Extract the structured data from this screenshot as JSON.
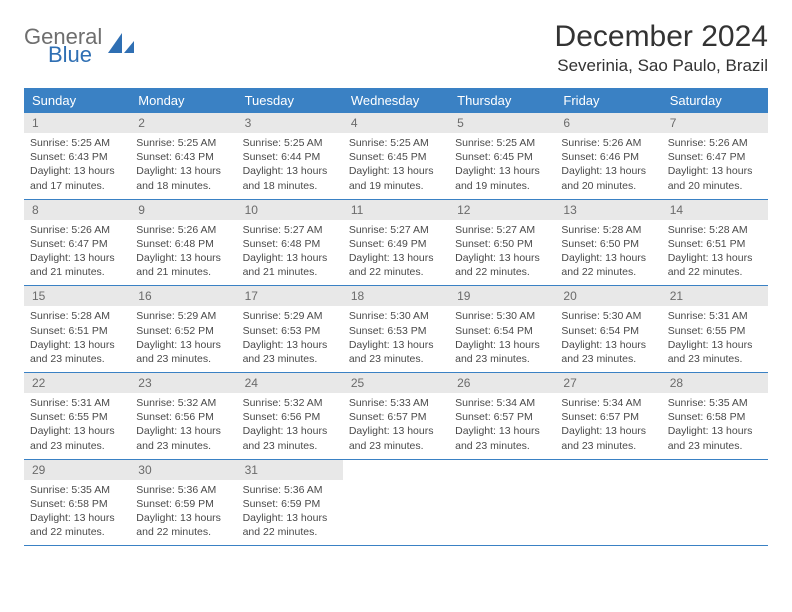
{
  "logo": {
    "top": "General",
    "bottom": "Blue"
  },
  "title": "December 2024",
  "subtitle": "Severinia, Sao Paulo, Brazil",
  "colors": {
    "header_bg": "#3a81c4",
    "header_text": "#ffffff",
    "daynum_bg": "#e8e8e8",
    "daynum_text": "#6b6b6b",
    "body_text": "#4a4a4a",
    "border": "#3a81c4",
    "logo_gray": "#6e6e6e",
    "logo_blue": "#2f6fb3"
  },
  "weekdays": [
    "Sunday",
    "Monday",
    "Tuesday",
    "Wednesday",
    "Thursday",
    "Friday",
    "Saturday"
  ],
  "cells": [
    {
      "day": "1",
      "sunrise": "Sunrise: 5:25 AM",
      "sunset": "Sunset: 6:43 PM",
      "daylight": "Daylight: 13 hours and 17 minutes."
    },
    {
      "day": "2",
      "sunrise": "Sunrise: 5:25 AM",
      "sunset": "Sunset: 6:43 PM",
      "daylight": "Daylight: 13 hours and 18 minutes."
    },
    {
      "day": "3",
      "sunrise": "Sunrise: 5:25 AM",
      "sunset": "Sunset: 6:44 PM",
      "daylight": "Daylight: 13 hours and 18 minutes."
    },
    {
      "day": "4",
      "sunrise": "Sunrise: 5:25 AM",
      "sunset": "Sunset: 6:45 PM",
      "daylight": "Daylight: 13 hours and 19 minutes."
    },
    {
      "day": "5",
      "sunrise": "Sunrise: 5:25 AM",
      "sunset": "Sunset: 6:45 PM",
      "daylight": "Daylight: 13 hours and 19 minutes."
    },
    {
      "day": "6",
      "sunrise": "Sunrise: 5:26 AM",
      "sunset": "Sunset: 6:46 PM",
      "daylight": "Daylight: 13 hours and 20 minutes."
    },
    {
      "day": "7",
      "sunrise": "Sunrise: 5:26 AM",
      "sunset": "Sunset: 6:47 PM",
      "daylight": "Daylight: 13 hours and 20 minutes."
    },
    {
      "day": "8",
      "sunrise": "Sunrise: 5:26 AM",
      "sunset": "Sunset: 6:47 PM",
      "daylight": "Daylight: 13 hours and 21 minutes."
    },
    {
      "day": "9",
      "sunrise": "Sunrise: 5:26 AM",
      "sunset": "Sunset: 6:48 PM",
      "daylight": "Daylight: 13 hours and 21 minutes."
    },
    {
      "day": "10",
      "sunrise": "Sunrise: 5:27 AM",
      "sunset": "Sunset: 6:48 PM",
      "daylight": "Daylight: 13 hours and 21 minutes."
    },
    {
      "day": "11",
      "sunrise": "Sunrise: 5:27 AM",
      "sunset": "Sunset: 6:49 PM",
      "daylight": "Daylight: 13 hours and 22 minutes."
    },
    {
      "day": "12",
      "sunrise": "Sunrise: 5:27 AM",
      "sunset": "Sunset: 6:50 PM",
      "daylight": "Daylight: 13 hours and 22 minutes."
    },
    {
      "day": "13",
      "sunrise": "Sunrise: 5:28 AM",
      "sunset": "Sunset: 6:50 PM",
      "daylight": "Daylight: 13 hours and 22 minutes."
    },
    {
      "day": "14",
      "sunrise": "Sunrise: 5:28 AM",
      "sunset": "Sunset: 6:51 PM",
      "daylight": "Daylight: 13 hours and 22 minutes."
    },
    {
      "day": "15",
      "sunrise": "Sunrise: 5:28 AM",
      "sunset": "Sunset: 6:51 PM",
      "daylight": "Daylight: 13 hours and 23 minutes."
    },
    {
      "day": "16",
      "sunrise": "Sunrise: 5:29 AM",
      "sunset": "Sunset: 6:52 PM",
      "daylight": "Daylight: 13 hours and 23 minutes."
    },
    {
      "day": "17",
      "sunrise": "Sunrise: 5:29 AM",
      "sunset": "Sunset: 6:53 PM",
      "daylight": "Daylight: 13 hours and 23 minutes."
    },
    {
      "day": "18",
      "sunrise": "Sunrise: 5:30 AM",
      "sunset": "Sunset: 6:53 PM",
      "daylight": "Daylight: 13 hours and 23 minutes."
    },
    {
      "day": "19",
      "sunrise": "Sunrise: 5:30 AM",
      "sunset": "Sunset: 6:54 PM",
      "daylight": "Daylight: 13 hours and 23 minutes."
    },
    {
      "day": "20",
      "sunrise": "Sunrise: 5:30 AM",
      "sunset": "Sunset: 6:54 PM",
      "daylight": "Daylight: 13 hours and 23 minutes."
    },
    {
      "day": "21",
      "sunrise": "Sunrise: 5:31 AM",
      "sunset": "Sunset: 6:55 PM",
      "daylight": "Daylight: 13 hours and 23 minutes."
    },
    {
      "day": "22",
      "sunrise": "Sunrise: 5:31 AM",
      "sunset": "Sunset: 6:55 PM",
      "daylight": "Daylight: 13 hours and 23 minutes."
    },
    {
      "day": "23",
      "sunrise": "Sunrise: 5:32 AM",
      "sunset": "Sunset: 6:56 PM",
      "daylight": "Daylight: 13 hours and 23 minutes."
    },
    {
      "day": "24",
      "sunrise": "Sunrise: 5:32 AM",
      "sunset": "Sunset: 6:56 PM",
      "daylight": "Daylight: 13 hours and 23 minutes."
    },
    {
      "day": "25",
      "sunrise": "Sunrise: 5:33 AM",
      "sunset": "Sunset: 6:57 PM",
      "daylight": "Daylight: 13 hours and 23 minutes."
    },
    {
      "day": "26",
      "sunrise": "Sunrise: 5:34 AM",
      "sunset": "Sunset: 6:57 PM",
      "daylight": "Daylight: 13 hours and 23 minutes."
    },
    {
      "day": "27",
      "sunrise": "Sunrise: 5:34 AM",
      "sunset": "Sunset: 6:57 PM",
      "daylight": "Daylight: 13 hours and 23 minutes."
    },
    {
      "day": "28",
      "sunrise": "Sunrise: 5:35 AM",
      "sunset": "Sunset: 6:58 PM",
      "daylight": "Daylight: 13 hours and 23 minutes."
    },
    {
      "day": "29",
      "sunrise": "Sunrise: 5:35 AM",
      "sunset": "Sunset: 6:58 PM",
      "daylight": "Daylight: 13 hours and 22 minutes."
    },
    {
      "day": "30",
      "sunrise": "Sunrise: 5:36 AM",
      "sunset": "Sunset: 6:59 PM",
      "daylight": "Daylight: 13 hours and 22 minutes."
    },
    {
      "day": "31",
      "sunrise": "Sunrise: 5:36 AM",
      "sunset": "Sunset: 6:59 PM",
      "daylight": "Daylight: 13 hours and 22 minutes."
    }
  ]
}
